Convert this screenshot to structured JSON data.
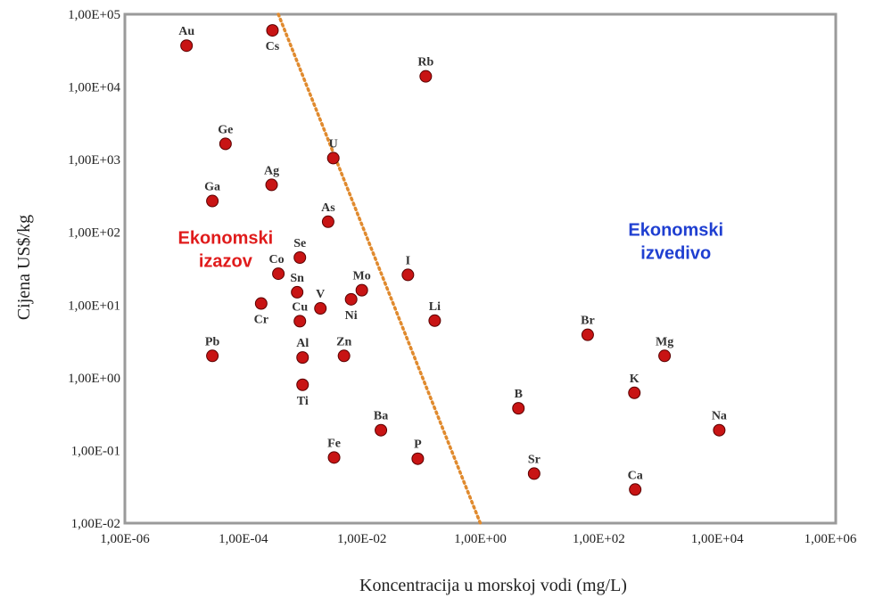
{
  "chart_data": {
    "type": "scatter",
    "xlabel": "Koncentracija u morskoj vodi (mg/L)",
    "ylabel": "Cijena US$/kg",
    "x_scale": "log",
    "y_scale": "log",
    "xlim": [
      1e-06,
      1000000.0
    ],
    "ylim": [
      0.01,
      100000
    ],
    "x_ticks": [
      {
        "value": 1e-06,
        "label": "1,00E-06"
      },
      {
        "value": 0.0001,
        "label": "1,00E-04"
      },
      {
        "value": 0.01,
        "label": "1,00E-02"
      },
      {
        "value": 1.0,
        "label": "1,00E+00"
      },
      {
        "value": 100.0,
        "label": "1,00E+02"
      },
      {
        "value": 10000.0,
        "label": "1,00E+04"
      },
      {
        "value": 1000000.0,
        "label": "1,00E+06"
      }
    ],
    "y_ticks": [
      {
        "value": 100000.0,
        "label": "1,00E+05"
      },
      {
        "value": 10000.0,
        "label": "1,00E+04"
      },
      {
        "value": 1000.0,
        "label": "1,00E+03"
      },
      {
        "value": 100.0,
        "label": "1,00E+02"
      },
      {
        "value": 10.0,
        "label": "1,00E+01"
      },
      {
        "value": 1.0,
        "label": "1,00E+00"
      },
      {
        "value": 0.1,
        "label": "1,00E-01"
      },
      {
        "value": 0.01,
        "label": "1,00E-02"
      }
    ],
    "grid": false,
    "point_color": "#c81414",
    "points": [
      {
        "label": "Au",
        "x": 1.1e-05,
        "y": 37000,
        "label_pos": "above"
      },
      {
        "label": "Cs",
        "x": 0.00031,
        "y": 60000,
        "label_pos": "below"
      },
      {
        "label": "Rb",
        "x": 0.12,
        "y": 14000,
        "label_pos": "above"
      },
      {
        "label": "Ge",
        "x": 5e-05,
        "y": 1650,
        "label_pos": "above"
      },
      {
        "label": "U",
        "x": 0.0033,
        "y": 1050,
        "label_pos": "above"
      },
      {
        "label": "Ag",
        "x": 0.0003,
        "y": 450,
        "label_pos": "above"
      },
      {
        "label": "Ga",
        "x": 3e-05,
        "y": 270,
        "label_pos": "above"
      },
      {
        "label": "As",
        "x": 0.0027,
        "y": 140,
        "label_pos": "above"
      },
      {
        "label": "Se",
        "x": 0.0009,
        "y": 45,
        "label_pos": "above"
      },
      {
        "label": "Co",
        "x": 0.00039,
        "y": 27,
        "label_pos": "above-left"
      },
      {
        "label": "I",
        "x": 0.06,
        "y": 26,
        "label_pos": "above"
      },
      {
        "label": "Sn",
        "x": 0.00081,
        "y": 15,
        "label_pos": "above"
      },
      {
        "label": "Mo",
        "x": 0.01,
        "y": 16,
        "label_pos": "above"
      },
      {
        "label": "Ni",
        "x": 0.0066,
        "y": 12,
        "label_pos": "below"
      },
      {
        "label": "Cr",
        "x": 0.0002,
        "y": 10.5,
        "label_pos": "below"
      },
      {
        "label": "V",
        "x": 0.002,
        "y": 9,
        "label_pos": "above"
      },
      {
        "label": "Cu",
        "x": 0.0009,
        "y": 6,
        "label_pos": "above"
      },
      {
        "label": "Li",
        "x": 0.17,
        "y": 6.1,
        "label_pos": "above"
      },
      {
        "label": "Br",
        "x": 65,
        "y": 3.9,
        "label_pos": "above"
      },
      {
        "label": "Pb",
        "x": 3e-05,
        "y": 2,
        "label_pos": "above"
      },
      {
        "label": "Al",
        "x": 0.001,
        "y": 1.9,
        "label_pos": "above"
      },
      {
        "label": "Zn",
        "x": 0.005,
        "y": 2,
        "label_pos": "above"
      },
      {
        "label": "Mg",
        "x": 1290,
        "y": 2,
        "label_pos": "above"
      },
      {
        "label": "Ti",
        "x": 0.001,
        "y": 0.8,
        "label_pos": "below"
      },
      {
        "label": "K",
        "x": 399,
        "y": 0.62,
        "label_pos": "above"
      },
      {
        "label": "B",
        "x": 4.4,
        "y": 0.38,
        "label_pos": "above"
      },
      {
        "label": "Ba",
        "x": 0.021,
        "y": 0.19,
        "label_pos": "above"
      },
      {
        "label": "Na",
        "x": 10800,
        "y": 0.19,
        "label_pos": "above"
      },
      {
        "label": "Fe",
        "x": 0.0034,
        "y": 0.08,
        "label_pos": "above"
      },
      {
        "label": "P",
        "x": 0.088,
        "y": 0.077,
        "label_pos": "above"
      },
      {
        "label": "Sr",
        "x": 8.1,
        "y": 0.048,
        "label_pos": "above"
      },
      {
        "label": "Ca",
        "x": 412,
        "y": 0.029,
        "label_pos": "above"
      }
    ],
    "divider_line": {
      "from": {
        "x": 0.00039,
        "y": 100000
      },
      "to": {
        "x": 1.0,
        "y": 0.01
      },
      "color": "#e08a2e",
      "style": "dotted"
    },
    "annotations": [
      {
        "lines": [
          "Ekonomski",
          "izazov"
        ],
        "color": "#e01b1b",
        "x": 5e-05,
        "y": 70
      },
      {
        "lines": [
          "Ekonomski",
          "izvedivo"
        ],
        "color": "#1f3fd1",
        "x": 2000,
        "y": 90
      }
    ]
  }
}
